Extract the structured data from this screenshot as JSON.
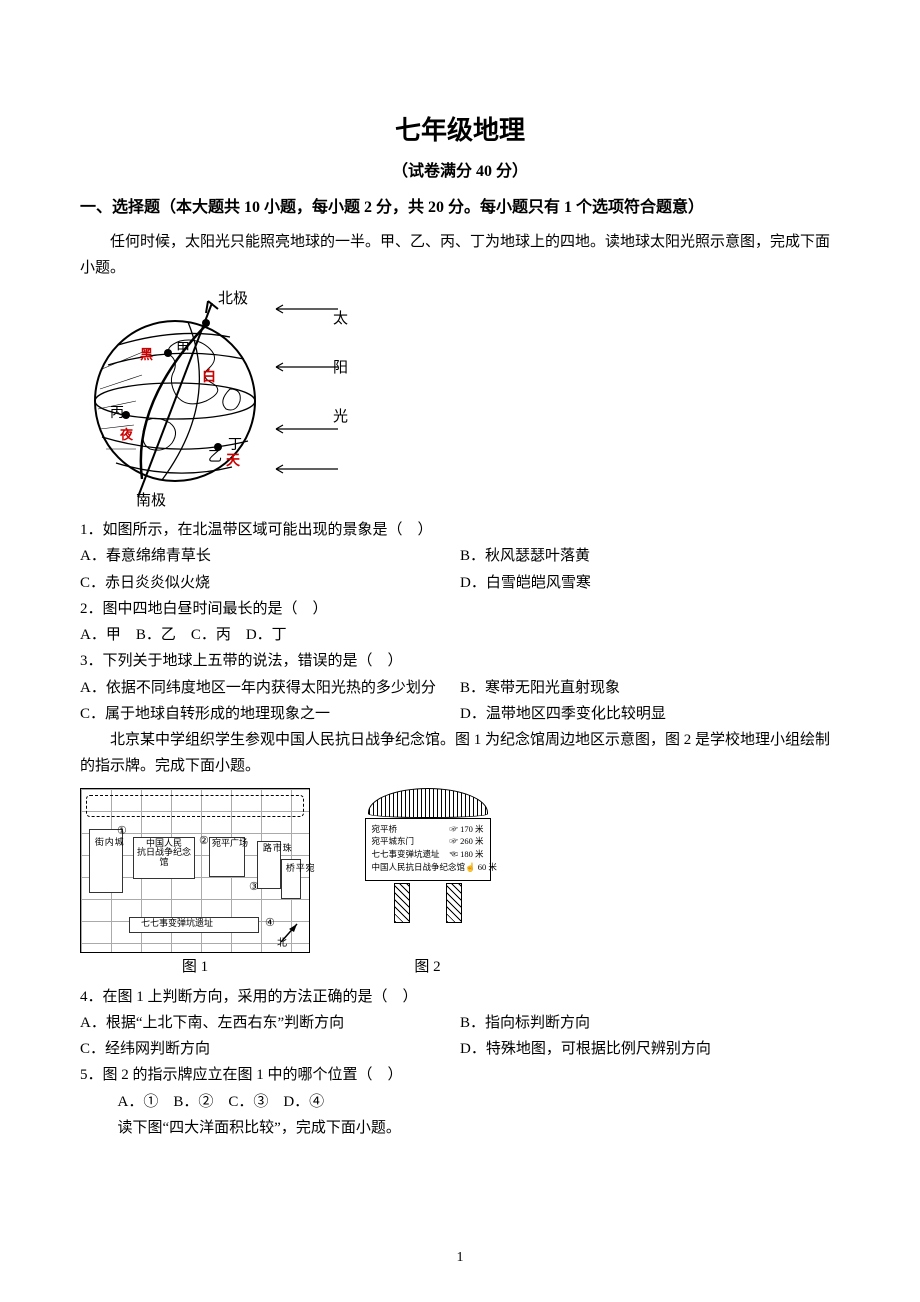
{
  "title": "七年级地理",
  "subtitle": "（试卷满分 40 分）",
  "section1": {
    "heading": "一、选择题（本大题共 10 小题，每小题 2 分，共 20 分。每小题只有 1 个选项符合题意）",
    "intro": "任何时候，太阳光只能照亮地球的一半。甲、乙、丙、丁为地球上的四地。读地球太阳光照示意图，完成下面小题。"
  },
  "globe": {
    "labels": {
      "north": "北极",
      "south": "南极",
      "jia": "甲",
      "bing": "丙",
      "yi": "乙",
      "ding": "丁",
      "hei": "黑",
      "ye": "夜",
      "bai": "白",
      "tian": "天"
    },
    "sun": [
      "太",
      "阳",
      "光"
    ]
  },
  "q1": {
    "stem": "1．如图所示，在北温带区域可能出现的景象是（　）",
    "A": "A．春意绵绵青草长",
    "B": "B．秋风瑟瑟叶落黄",
    "C": "C．赤日炎炎似火烧",
    "D": "D．白雪皑皑风雪寒"
  },
  "q2": {
    "stem": "2．图中四地白昼时间最长的是（　）",
    "opts": "A．甲　B．乙　C．丙　D．丁"
  },
  "q3": {
    "stem": "3．下列关于地球上五带的说法，错误的是（　）",
    "A": "A．依据不同纬度地区一年内获得太阳光热的多少划分",
    "B": "B．寒带无阳光直射现象",
    "C": "C．属于地球自转形成的地理现象之一",
    "D": "D．温带地区四季变化比较明显"
  },
  "intro2": "北京某中学组织学生参观中国人民抗日战争纪念馆。图 1 为纪念馆周边地区示意图，图 2 是学校地理小组绘制的指示牌。完成下面小题。",
  "map1_labels": {
    "museum": "中国人民\n抗日战争纪念馆",
    "road_left": "城\n内\n街",
    "bridge": "宛\n平\n桥",
    "site": "七七事变弹坑遗址",
    "zhu": "珠\n市\n路",
    "sq": "宛平广场"
  },
  "sign": {
    "rows": [
      {
        "l": "宛平桥",
        "r": "170 米"
      },
      {
        "l": "宛平城东门",
        "r": "260 米"
      },
      {
        "l": "七七事变弹坑遗址",
        "r": "180 米"
      },
      {
        "l": "中国人民抗日战争纪念馆",
        "r": "60 米"
      }
    ]
  },
  "cap1": "图 1",
  "cap2": "图 2",
  "q4": {
    "stem": "4．在图 1 上判断方向，采用的方法正确的是（　）",
    "A": "A．根据“上北下南、左西右东”判断方向",
    "B": "B．指向标判断方向",
    "C": "C．经纬网判断方向",
    "D": "D．特殊地图，可根据比例尺辨别方向"
  },
  "q5": {
    "stem": "5．图 2 的指示牌应立在图 1 中的哪个位置（　）",
    "opts": "A．①　B．②　C．③　D．④"
  },
  "intro3": "读下图“四大洋面积比较”，完成下面小题。",
  "pageNum": "1",
  "colors": {
    "text": "#000000",
    "bg": "#ffffff",
    "figure_lines": "#000000",
    "accent_red": "#cc0000"
  }
}
